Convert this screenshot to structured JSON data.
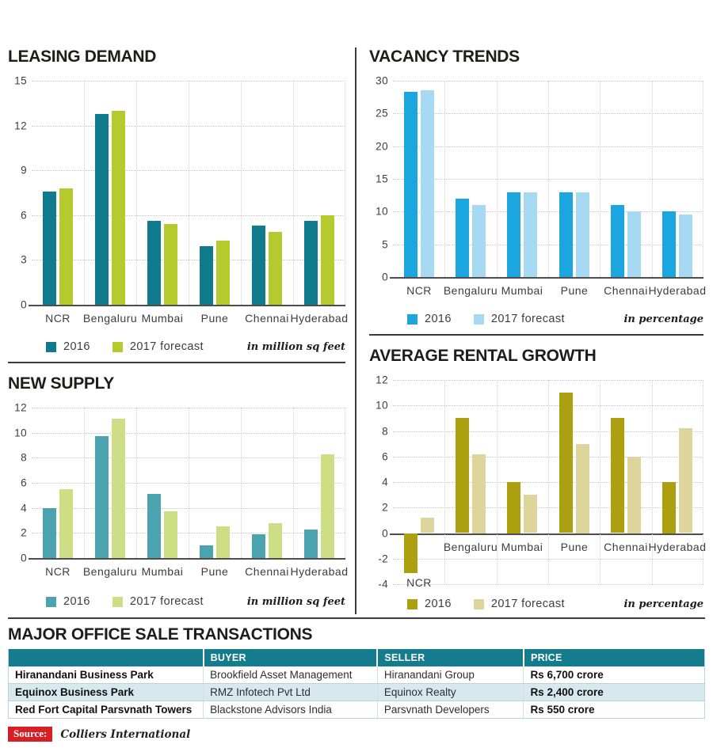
{
  "chart_data": [
    {
      "type": "bar",
      "title": "LEASING DEMAND",
      "categories": [
        "NCR",
        "Bengaluru",
        "Mumbai",
        "Pune",
        "Chennai",
        "Hyderabad"
      ],
      "series": [
        {
          "name": "2016",
          "color": "#0f7b8c",
          "values": [
            7.6,
            12.8,
            5.6,
            3.9,
            5.3,
            5.6
          ]
        },
        {
          "name": "2017 forecast",
          "color": "#b5ca2d",
          "values": [
            7.8,
            13.0,
            5.4,
            4.3,
            4.9,
            6.0
          ]
        }
      ],
      "ylim": [
        0,
        15
      ],
      "yticks": [
        0,
        3,
        6,
        9,
        12,
        15
      ],
      "unit_note": "in million sq feet",
      "legend_position": "bottom-left",
      "grid": true
    },
    {
      "type": "bar",
      "title": "VACANCY TRENDS",
      "categories": [
        "NCR",
        "Bengaluru",
        "Mumbai",
        "Pune",
        "Chennai",
        "Hyderabad"
      ],
      "series": [
        {
          "name": "2016",
          "color": "#1ca6e0",
          "values": [
            28.3,
            12.0,
            13.0,
            13.0,
            11.0,
            10.0
          ]
        },
        {
          "name": "2017 forecast",
          "color": "#a8d9f3",
          "values": [
            28.6,
            11.0,
            13.0,
            13.0,
            10.0,
            9.5
          ]
        }
      ],
      "ylim": [
        0,
        30
      ],
      "yticks": [
        0,
        5,
        10,
        15,
        20,
        25,
        30
      ],
      "unit_note": "in percentage",
      "legend_position": "bottom-left",
      "grid": true
    },
    {
      "type": "bar",
      "title": "NEW SUPPLY",
      "categories": [
        "NCR",
        "Bengaluru",
        "Mumbai",
        "Pune",
        "Chennai",
        "Hyderabad"
      ],
      "series": [
        {
          "name": "2016",
          "color": "#4ba3b0",
          "values": [
            4.0,
            9.7,
            5.1,
            1.0,
            1.9,
            2.3
          ]
        },
        {
          "name": "2017 forecast",
          "color": "#cede84",
          "values": [
            5.5,
            11.1,
            3.7,
            2.5,
            2.8,
            8.3
          ]
        }
      ],
      "ylim": [
        0,
        12
      ],
      "yticks": [
        0,
        2,
        4,
        6,
        8,
        10,
        12
      ],
      "unit_note": "in million sq feet",
      "legend_position": "bottom-left",
      "grid": true
    },
    {
      "type": "bar",
      "title": "AVERAGE RENTAL GROWTH",
      "categories": [
        "NCR",
        "Bengaluru",
        "Mumbai",
        "Pune",
        "Chennai",
        "Hyderabad"
      ],
      "series": [
        {
          "name": "2016",
          "color": "#ac9f10",
          "values": [
            -3.1,
            9.0,
            4.0,
            11.0,
            9.0,
            4.0
          ]
        },
        {
          "name": "2017 forecast",
          "color": "#ddd59b",
          "values": [
            1.2,
            6.2,
            3.0,
            7.0,
            6.0,
            8.2
          ]
        }
      ],
      "ylim": [
        -4,
        12
      ],
      "yticks": [
        -4,
        -2,
        0,
        2,
        4,
        6,
        8,
        10,
        12
      ],
      "unit_note": "in percentage",
      "legend_position": "bottom-left",
      "grid": true
    }
  ],
  "table": {
    "title": "MAJOR OFFICE SALE TRANSACTIONS",
    "columns": [
      "",
      "BUYER",
      "SELLER",
      "PRICE"
    ],
    "rows": [
      [
        "Hiranandani Business Park",
        "Brookfield Asset Management",
        "Hiranandani Group",
        "Rs 6,700 crore"
      ],
      [
        "Equinox Business Park",
        "RMZ Infotech Pvt Ltd",
        "Equinox Realty",
        "Rs 2,400 crore"
      ],
      [
        "Red Fort Capital Parsvnath Towers",
        "Blackstone Advisors India",
        "Parsvnath Developers",
        "Rs 550 crore"
      ]
    ],
    "header_bg": "#157c8e",
    "alt_row_bg": "#d7e8ef"
  },
  "source": {
    "label": "Source:",
    "text": "Colliers International",
    "badge_color": "#d91f26"
  }
}
